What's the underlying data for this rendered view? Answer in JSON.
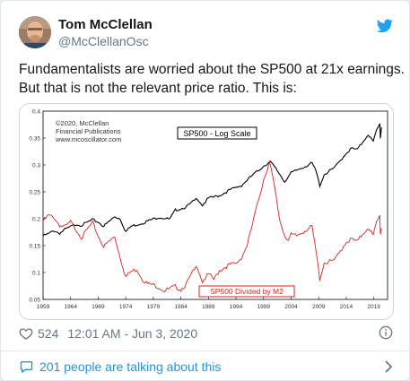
{
  "tweet": {
    "author_name": "Tom McClellan",
    "author_handle": "@McClellanOsc",
    "text_line1": "Fundamentalists are worried about the SP500 at 21x earnings.",
    "text_line2": "But that is not the relevant price ratio. This is:",
    "likes": "524",
    "timestamp": "12:01 AM - Jun 3, 2020",
    "talking": "201 people are talking about this"
  },
  "icons": {
    "twitter": "twitter-bird-icon",
    "heart": "heart-icon",
    "info": "info-icon",
    "comment": "speech-bubble-icon",
    "chevron": "chevron-right-icon"
  },
  "colors": {
    "twitter_blue": "#1da1f2",
    "link_blue": "#1b95e0",
    "ratio_red": "#e0201c",
    "sp500_black": "#000000"
  },
  "chart_data": {
    "type": "line",
    "credit": [
      "©2020, McClellan",
      "Financial Publications",
      "www.mcoscillator.com"
    ],
    "y_ticks": [
      "0.05",
      "0.1",
      "0.15",
      "0.2",
      "0.25",
      "0.3",
      "0.35",
      "0.4"
    ],
    "x_ticks": [
      "1959",
      "1964",
      "1969",
      "1974",
      "1979",
      "1984",
      "1989",
      "1994",
      "1999",
      "2004",
      "2009",
      "2014",
      "2019"
    ],
    "ylim": [
      0.05,
      0.4
    ],
    "xlim": [
      1959,
      2021.5
    ],
    "grid": false,
    "series": [
      {
        "name": "SP500 - Log Scale",
        "color": "#000000",
        "points": [
          [
            1959,
            0.168
          ],
          [
            1960,
            0.172
          ],
          [
            1961,
            0.178
          ],
          [
            1962,
            0.173
          ],
          [
            1963,
            0.18
          ],
          [
            1965,
            0.19
          ],
          [
            1966,
            0.188
          ],
          [
            1968,
            0.198
          ],
          [
            1969,
            0.194
          ],
          [
            1970,
            0.186
          ],
          [
            1972,
            0.204
          ],
          [
            1973,
            0.2
          ],
          [
            1974,
            0.176
          ],
          [
            1975,
            0.186
          ],
          [
            1977,
            0.192
          ],
          [
            1980,
            0.203
          ],
          [
            1982,
            0.199
          ],
          [
            1983,
            0.216
          ],
          [
            1985,
            0.222
          ],
          [
            1987,
            0.238
          ],
          [
            1987.9,
            0.225
          ],
          [
            1989,
            0.238
          ],
          [
            1991,
            0.243
          ],
          [
            1993,
            0.254
          ],
          [
            1995,
            0.262
          ],
          [
            1997,
            0.281
          ],
          [
            1998,
            0.289
          ],
          [
            1999,
            0.298
          ],
          [
            2000.2,
            0.306
          ],
          [
            2001,
            0.296
          ],
          [
            2002,
            0.282
          ],
          [
            2002.8,
            0.269
          ],
          [
            2004,
            0.285
          ],
          [
            2006,
            0.295
          ],
          [
            2007.8,
            0.303
          ],
          [
            2008.5,
            0.289
          ],
          [
            2009.2,
            0.262
          ],
          [
            2010,
            0.282
          ],
          [
            2012,
            0.296
          ],
          [
            2014,
            0.322
          ],
          [
            2015,
            0.331
          ],
          [
            2016,
            0.328
          ],
          [
            2017,
            0.343
          ],
          [
            2018,
            0.357
          ],
          [
            2018.9,
            0.343
          ],
          [
            2019.5,
            0.364
          ],
          [
            2020.1,
            0.376
          ],
          [
            2020.2,
            0.35
          ],
          [
            2020.4,
            0.37
          ]
        ]
      },
      {
        "name": "SP500 Divided by M2",
        "color": "#e0201c",
        "points": [
          [
            1959,
            0.196
          ],
          [
            1960,
            0.206
          ],
          [
            1961,
            0.202
          ],
          [
            1962,
            0.188
          ],
          [
            1963,
            0.185
          ],
          [
            1964,
            0.194
          ],
          [
            1965,
            0.18
          ],
          [
            1966,
            0.165
          ],
          [
            1967,
            0.18
          ],
          [
            1968,
            0.192
          ],
          [
            1969,
            0.168
          ],
          [
            1970,
            0.148
          ],
          [
            1971,
            0.158
          ],
          [
            1972,
            0.167
          ],
          [
            1973,
            0.128
          ],
          [
            1974,
            0.092
          ],
          [
            1975,
            0.102
          ],
          [
            1976,
            0.106
          ],
          [
            1977,
            0.088
          ],
          [
            1978,
            0.079
          ],
          [
            1979,
            0.077
          ],
          [
            1980,
            0.073
          ],
          [
            1981,
            0.066
          ],
          [
            1982,
            0.07
          ],
          [
            1983,
            0.074
          ],
          [
            1984,
            0.068
          ],
          [
            1985,
            0.079
          ],
          [
            1986,
            0.098
          ],
          [
            1987,
            0.112
          ],
          [
            1987.9,
            0.083
          ],
          [
            1989,
            0.097
          ],
          [
            1990,
            0.087
          ],
          [
            1991,
            0.104
          ],
          [
            1992,
            0.11
          ],
          [
            1993,
            0.115
          ],
          [
            1994,
            0.116
          ],
          [
            1995,
            0.128
          ],
          [
            1996,
            0.15
          ],
          [
            1997,
            0.19
          ],
          [
            1998,
            0.232
          ],
          [
            1999,
            0.272
          ],
          [
            2000.1,
            0.306
          ],
          [
            2001,
            0.258
          ],
          [
            2001.6,
            0.218
          ],
          [
            2002,
            0.195
          ],
          [
            2002.8,
            0.17
          ],
          [
            2003.5,
            0.16
          ],
          [
            2004,
            0.17
          ],
          [
            2005,
            0.168
          ],
          [
            2006,
            0.175
          ],
          [
            2007,
            0.181
          ],
          [
            2007.8,
            0.185
          ],
          [
            2008.5,
            0.14
          ],
          [
            2009.2,
            0.088
          ],
          [
            2010,
            0.118
          ],
          [
            2011,
            0.12
          ],
          [
            2012,
            0.124
          ],
          [
            2013,
            0.141
          ],
          [
            2014,
            0.157
          ],
          [
            2015,
            0.162
          ],
          [
            2016,
            0.157
          ],
          [
            2017,
            0.172
          ],
          [
            2018,
            0.184
          ],
          [
            2018.9,
            0.168
          ],
          [
            2019.5,
            0.193
          ],
          [
            2020.1,
            0.205
          ],
          [
            2020.2,
            0.172
          ],
          [
            2020.4,
            0.183
          ]
        ]
      }
    ]
  }
}
